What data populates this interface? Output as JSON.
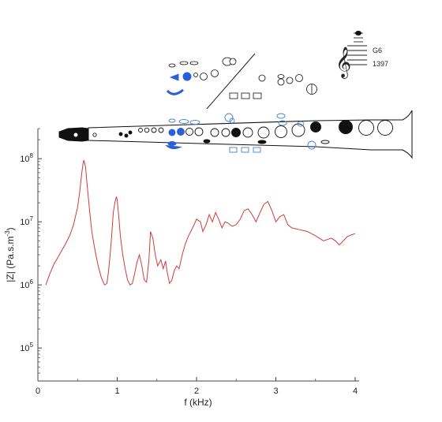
{
  "note": {
    "name": "G6",
    "frequency": "1397"
  },
  "chart_data": {
    "type": "line",
    "title": "",
    "xlabel": "f (kHz)",
    "ylabel_main": "|Z| (Pa.s.m",
    "ylabel_sup": "-3",
    "ylabel_end": ")",
    "xlim": [
      0,
      4
    ],
    "ylim": [
      30000,
      300000000
    ],
    "yscale": "log",
    "grid": false,
    "x_ticks": [
      "0",
      "1",
      "2",
      "3",
      "4"
    ],
    "y_ticks": [
      {
        "base": "10",
        "exp": "8",
        "value": 100000000
      },
      {
        "base": "10",
        "exp": "7",
        "value": 10000000
      },
      {
        "base": "10",
        "exp": "6",
        "value": 1000000
      },
      {
        "base": "10",
        "exp": "5",
        "value": 100000
      }
    ],
    "series": [
      {
        "color": "#d43a3a",
        "x": [
          0.1,
          0.15,
          0.2,
          0.25,
          0.3,
          0.35,
          0.4,
          0.45,
          0.5,
          0.53,
          0.55,
          0.57,
          0.58,
          0.6,
          0.62,
          0.65,
          0.68,
          0.72,
          0.76,
          0.8,
          0.84,
          0.87,
          0.89,
          0.91,
          0.93,
          0.95,
          0.97,
          0.99,
          1.0,
          1.02,
          1.04,
          1.07,
          1.1,
          1.13,
          1.16,
          1.19,
          1.22,
          1.25,
          1.28,
          1.31,
          1.34,
          1.37,
          1.4,
          1.42,
          1.45,
          1.48,
          1.51,
          1.55,
          1.58,
          1.61,
          1.63,
          1.66,
          1.69,
          1.72,
          1.75,
          1.78,
          1.82,
          1.86,
          1.9,
          1.95,
          2.0,
          2.05,
          2.08,
          2.12,
          2.16,
          2.2,
          2.24,
          2.28,
          2.32,
          2.36,
          2.4,
          2.45,
          2.5,
          2.55,
          2.6,
          2.65,
          2.7,
          2.75,
          2.8,
          2.85,
          2.9,
          2.95,
          3.0,
          3.05,
          3.1,
          3.15,
          3.2,
          3.3,
          3.4,
          3.5,
          3.6,
          3.7,
          3.75,
          3.8,
          3.85,
          3.9,
          3.95,
          4.0
        ],
        "y": [
          1000000,
          1500000,
          2100000,
          2700000,
          3500000,
          4500000,
          6000000,
          9000000,
          17000000,
          32000000,
          55000000,
          85000000,
          95000000,
          75000000,
          40000000,
          16000000,
          7000000,
          3500000,
          2000000,
          1300000,
          1000000,
          1050000,
          1600000,
          3000000,
          6000000,
          14000000,
          20000000,
          25000000,
          22000000,
          12000000,
          6000000,
          3000000,
          1800000,
          1200000,
          1000000,
          1050000,
          1500000,
          2300000,
          3000000,
          2000000,
          1200000,
          1100000,
          2500000,
          7000000,
          5500000,
          3000000,
          2000000,
          2500000,
          1800000,
          2400000,
          1600000,
          1050000,
          1200000,
          1700000,
          2000000,
          1800000,
          3000000,
          4500000,
          6000000,
          8000000,
          11000000,
          10000000,
          7000000,
          9000000,
          13000000,
          10000000,
          14000000,
          11000000,
          8000000,
          10000000,
          9500000,
          8500000,
          9000000,
          11000000,
          15000000,
          16000000,
          13000000,
          10000000,
          14000000,
          19000000,
          21000000,
          15000000,
          10000000,
          12000000,
          13000000,
          9000000,
          8000000,
          7500000,
          7000000,
          6000000,
          5000000,
          5500000,
          5000000,
          4300000,
          5000000,
          5800000,
          6200000,
          6500000
        ]
      }
    ]
  }
}
